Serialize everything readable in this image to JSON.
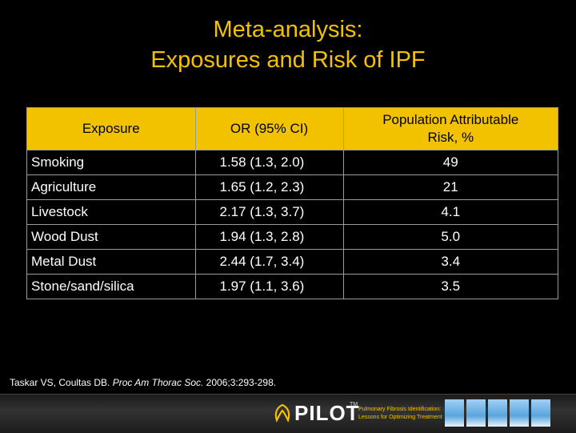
{
  "slide": {
    "title_line1": "Meta-analysis:",
    "title_line2": "Exposures and Risk of IPF"
  },
  "table": {
    "headers": {
      "exposure": "Exposure",
      "or": "OR (95% CI)",
      "par_line1": "Population Attributable",
      "par_line2": "Risk, %"
    },
    "rows": [
      {
        "exposure": "Smoking",
        "or": "1.58 (1.3, 2.0)",
        "par": "49"
      },
      {
        "exposure": "Agriculture",
        "or": "1.65 (1.2, 2.3)",
        "par": "21"
      },
      {
        "exposure": "Livestock",
        "or": "2.17 (1.3, 3.7)",
        "par": "4.1"
      },
      {
        "exposure": "Wood Dust",
        "or": "1.94 (1.3, 2.8)",
        "par": "5.0"
      },
      {
        "exposure": "Metal Dust",
        "or": "2.44 (1.7, 3.4)",
        "par": "3.4"
      },
      {
        "exposure": "Stone/sand/silica",
        "or": "1.97 (1.1, 3.6)",
        "par": "3.5"
      }
    ]
  },
  "citation": {
    "authors": "Taskar VS, Coultas DB.",
    "journal": "Proc Am Thorac Soc.",
    "details": "2006;3:293-298."
  },
  "footer": {
    "logo": "PILOT",
    "trademark": "TM",
    "tagline_line1": "Pulmonary Fibrosis Identification:",
    "tagline_line2": "Lessons for Optimizing Treatment",
    "colors": {
      "accent": "#f2c200",
      "background": "#000000"
    },
    "icons": [
      "pilot-logo-icon",
      "sky-image"
    ]
  }
}
